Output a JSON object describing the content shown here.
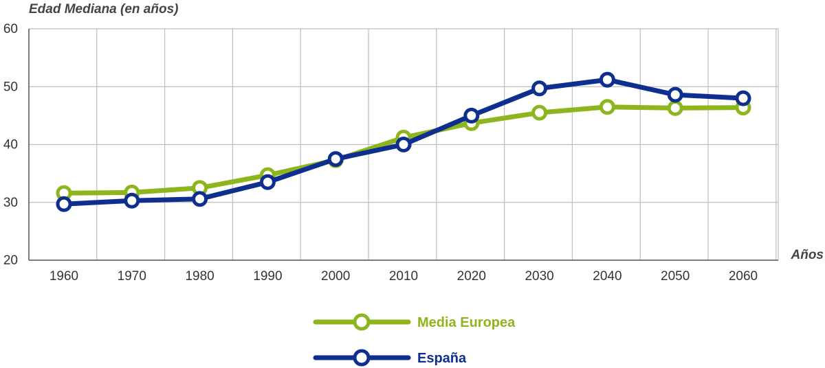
{
  "chart_data": {
    "type": "line",
    "ylabel": "Edad Mediana (en años)",
    "xlabel": "Años",
    "x": [
      "1960",
      "1970",
      "1980",
      "1990",
      "2000",
      "2010",
      "2020",
      "2030",
      "2040",
      "2050",
      "2060"
    ],
    "xticks": [
      "1960",
      "1970",
      "1980",
      "1990",
      "2000",
      "2010",
      "2020",
      "2030",
      "2040",
      "2050",
      "2060"
    ],
    "ylim": [
      20,
      60
    ],
    "yticks": [
      "20",
      "30",
      "40",
      "50",
      "60"
    ],
    "grid": true,
    "legend_position": "bottom-center",
    "series": [
      {
        "name": "Media Europea",
        "color": "#8db51e",
        "values": [
          31.6,
          31.7,
          32.5,
          34.7,
          37.3,
          41.2,
          43.7,
          45.5,
          46.5,
          46.3,
          46.4
        ]
      },
      {
        "name": "España",
        "color": "#0e2f8e",
        "values": [
          29.7,
          30.3,
          30.6,
          33.5,
          37.5,
          40.0,
          45.0,
          49.7,
          51.2,
          48.6,
          48.0
        ]
      }
    ]
  }
}
